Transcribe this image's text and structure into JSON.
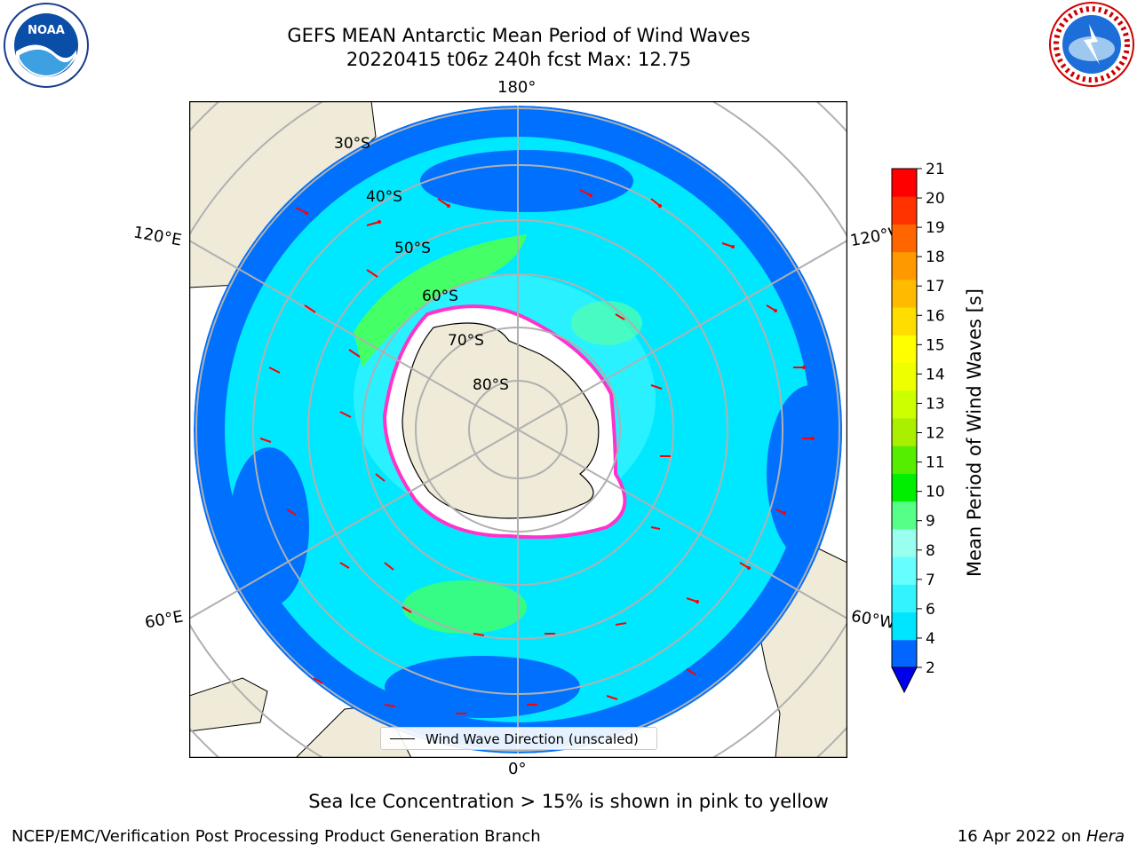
{
  "title": {
    "line1": "GEFS MEAN Antarctic Mean Period of Wind Waves",
    "line2": "20220415 t06z 240h fcst   Max: 12.75"
  },
  "logos": {
    "left": {
      "icon": "noaa-logo",
      "text": "NOAA"
    },
    "right": {
      "icon": "nws-logo",
      "text": "NATIONAL WEATHER SERVICE"
    }
  },
  "map": {
    "longitude_labels": {
      "top": "180°",
      "bottom": "0°",
      "upper_left": "120°E",
      "upper_right": "120°W",
      "lower_left": "60°E",
      "lower_right": "60°W"
    },
    "latitude_labels": [
      "30°S",
      "40°S",
      "50°S",
      "60°S",
      "70°S",
      "80°S"
    ],
    "legend": "Wind Wave Direction (unscaled)",
    "colors": {
      "ocean_low": "#0070ff",
      "ocean_mid": "#00e8ff",
      "ocean_high": "#44ff66",
      "land": "#efebd8",
      "ice": "#ffffff",
      "ice_edge": "#ff33cc",
      "arrow": "#ff0000"
    }
  },
  "colorbar": {
    "label": "Mean Period of Wind Waves [s]",
    "ticks": [
      "2",
      "4",
      "6",
      "7",
      "8",
      "9",
      "10",
      "11",
      "12",
      "13",
      "14",
      "15",
      "16",
      "17",
      "18",
      "19",
      "20",
      "21"
    ],
    "colors": [
      "#0066ff",
      "#00e5ff",
      "#33f3ff",
      "#66ffff",
      "#99ffee",
      "#55ff88",
      "#00ee00",
      "#55ee00",
      "#aaee00",
      "#ccff00",
      "#eeff00",
      "#ffff00",
      "#ffdd00",
      "#ffbb00",
      "#ff9900",
      "#ff6600",
      "#ff3300",
      "#ff0000"
    ],
    "under_color": "#0000ee"
  },
  "caption": "Sea Ice Concentration > 15% is shown in pink to yellow",
  "footer": {
    "left": "NCEP/EMC/Verification Post Processing Product Generation Branch",
    "date": "16 Apr 2022 on ",
    "machine": "Hera"
  }
}
